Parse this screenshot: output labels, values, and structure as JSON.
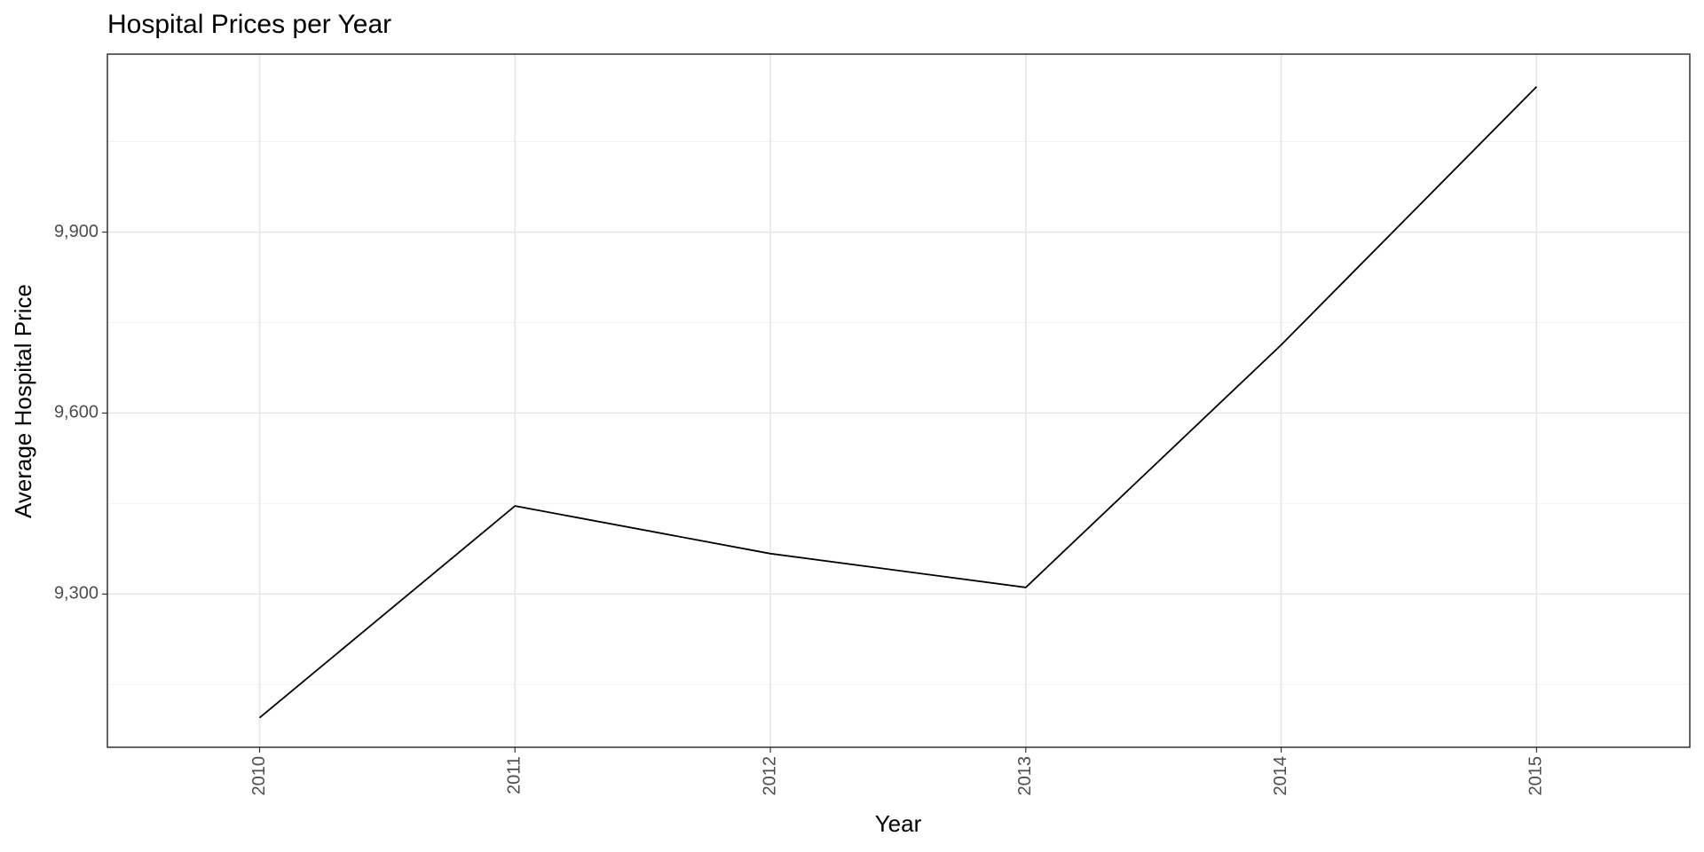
{
  "chart_data": {
    "type": "line",
    "title": "Hospital Prices per Year",
    "x_label": "Year",
    "y_label": "Average Hospital Price",
    "x": [
      2010,
      2011,
      2012,
      2013,
      2014,
      2015
    ],
    "series": [
      {
        "name": "Average Hospital Price",
        "color": "#000000",
        "values": [
          9095,
          9446,
          9367,
          9311,
          9713,
          10141
        ]
      }
    ],
    "xlim": [
      2009.404,
      2015.6
    ],
    "xticks": [
      2010,
      2011,
      2012,
      2013,
      2014,
      2015
    ],
    "ylim": [
      9046,
      10195
    ],
    "yticks": [
      {
        "value": 9300,
        "label": "9,300"
      },
      {
        "value": 9600,
        "label": "9,600"
      },
      {
        "value": 9900,
        "label": "9,900"
      }
    ],
    "minor_yticks": [
      9150,
      9450,
      9750,
      10050
    ],
    "grid": true
  }
}
